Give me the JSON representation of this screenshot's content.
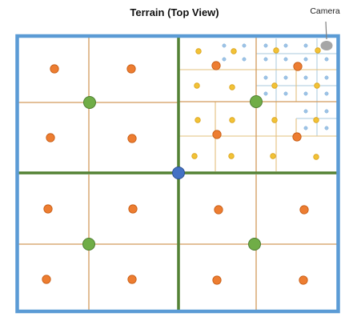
{
  "title": "Terrain (Top View)",
  "camera": {
    "label": "Camera"
  },
  "colors": {
    "frame": "#5b9bd5",
    "level1_split": "#548235",
    "level2_split": "#d29a5c",
    "level3_split": "#e3c07e",
    "level4_split": "#a9c8dc",
    "root_node": "#4472c4",
    "level1_node": "#70ad47",
    "level2_node": "#ed7d31",
    "level3_node": "#f2c236",
    "level4_node": "#9dc3e6",
    "camera_marker": "#a6a6a6"
  },
  "legend": []
}
